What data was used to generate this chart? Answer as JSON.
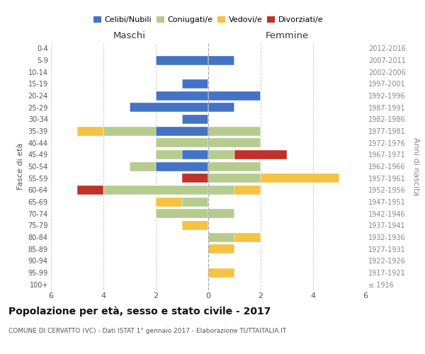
{
  "age_groups": [
    "100+",
    "95-99",
    "90-94",
    "85-89",
    "80-84",
    "75-79",
    "70-74",
    "65-69",
    "60-64",
    "55-59",
    "50-54",
    "45-49",
    "40-44",
    "35-39",
    "30-34",
    "25-29",
    "20-24",
    "15-19",
    "10-14",
    "5-9",
    "0-4"
  ],
  "birth_years": [
    "≤ 1916",
    "1917-1921",
    "1922-1926",
    "1927-1931",
    "1932-1936",
    "1937-1941",
    "1942-1946",
    "1947-1951",
    "1952-1956",
    "1957-1961",
    "1962-1966",
    "1967-1971",
    "1972-1976",
    "1977-1981",
    "1982-1986",
    "1987-1991",
    "1992-1996",
    "1997-2001",
    "2002-2006",
    "2007-2011",
    "2012-2016"
  ],
  "maschi": {
    "celibi": [
      0,
      0,
      0,
      0,
      0,
      0,
      0,
      0,
      0,
      0,
      2,
      1,
      0,
      2,
      1,
      3,
      2,
      1,
      0,
      2,
      0
    ],
    "coniugati": [
      0,
      0,
      0,
      0,
      0,
      0,
      2,
      1,
      4,
      0,
      1,
      1,
      2,
      2,
      0,
      0,
      0,
      0,
      0,
      0,
      0
    ],
    "vedovi": [
      0,
      0,
      0,
      0,
      0,
      1,
      0,
      1,
      0,
      0,
      0,
      0,
      0,
      1,
      0,
      0,
      0,
      0,
      0,
      0,
      0
    ],
    "divorziati": [
      0,
      0,
      0,
      0,
      0,
      0,
      0,
      0,
      1,
      1,
      0,
      0,
      0,
      0,
      0,
      0,
      0,
      0,
      0,
      0,
      0
    ]
  },
  "femmine": {
    "nubili": [
      0,
      0,
      0,
      0,
      0,
      0,
      0,
      0,
      0,
      0,
      0,
      0,
      0,
      0,
      0,
      1,
      2,
      0,
      0,
      1,
      0
    ],
    "coniugate": [
      0,
      0,
      0,
      0,
      1,
      0,
      1,
      0,
      1,
      2,
      2,
      1,
      2,
      2,
      0,
      0,
      0,
      0,
      0,
      0,
      0
    ],
    "vedove": [
      0,
      1,
      0,
      1,
      1,
      0,
      0,
      0,
      1,
      3,
      0,
      0,
      0,
      0,
      0,
      0,
      0,
      0,
      0,
      0,
      0
    ],
    "divorziate": [
      0,
      0,
      0,
      0,
      0,
      0,
      0,
      0,
      0,
      0,
      0,
      2,
      0,
      0,
      0,
      0,
      0,
      0,
      0,
      0,
      0
    ]
  },
  "colors": {
    "celibi_nubili": "#4472c4",
    "coniugati": "#b5cc8e",
    "vedovi": "#f5c242",
    "divorziati": "#c0312b"
  },
  "title": "Popolazione per età, sesso e stato civile - 2017",
  "subtitle": "COMUNE DI CERVATTO (VC) - Dati ISTAT 1° gennaio 2017 - Elaborazione TUTTAITALIA.IT",
  "xlabel_left": "Maschi",
  "xlabel_right": "Femmine",
  "ylabel_left": "Fasce di età",
  "ylabel_right": "Anni di nascita",
  "xlim": 6,
  "background_color": "#ffffff",
  "grid_color": "#cccccc"
}
